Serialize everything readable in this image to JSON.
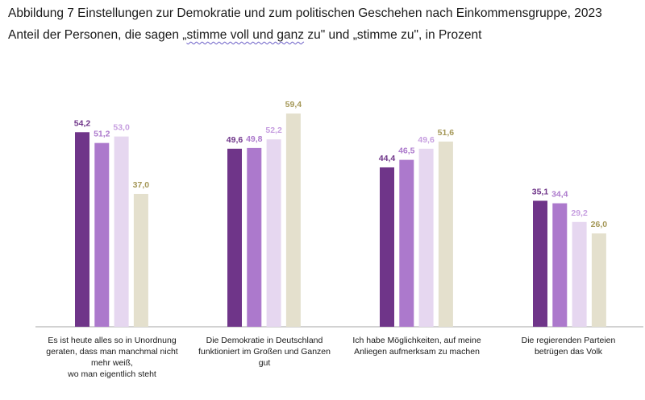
{
  "title": "Abbildung 7 Einstellungen zur Demokratie und zum politischen Geschehen nach Einkommensgruppe, 2023",
  "subtitle_before": "Anteil der Personen, die sagen „",
  "subtitle_mark": "stimme voll und ganz",
  "subtitle_after": " zu\" und „stimme zu\", in Prozent",
  "colors": [
    "#6f3589",
    "#ac79cc",
    "#e6d7f0",
    "#e4e0cd"
  ],
  "label_colors": [
    "#6f3589",
    "#ac79cc",
    "#c79fe0",
    "#a59858"
  ],
  "chart_data": {
    "type": "bar",
    "categories": [
      "Es ist heute alles so in Unordnung geraten, dass man manchmal nicht mehr weiß, wo man eigentlich steht",
      "Die Demokratie in Deutschland funktioniert im Großen und Ganzen gut",
      "Ich habe Möglichkeiten, auf meine Anliegen aufmerksam zu machen",
      "Die regierenden Parteien betrügen das Volk"
    ],
    "category_lines": [
      [
        "Es ist heute alles so in Unordnung",
        "geraten, dass man manchmal nicht",
        "mehr weiß,",
        "wo man eigentlich steht"
      ],
      [
        "Die Demokratie in Deutschland",
        "funktioniert im Großen und Ganzen",
        "gut"
      ],
      [
        "Ich habe Möglichkeiten, auf meine",
        "Anliegen aufmerksam zu machen"
      ],
      [
        "Die regierenden Parteien",
        "betrügen das Volk"
      ]
    ],
    "series": [
      {
        "values": [
          54.2,
          49.6,
          44.4,
          35.1
        ],
        "labels": [
          "54,2",
          "49,6",
          "44,4",
          "35,1"
        ]
      },
      {
        "values": [
          51.2,
          49.8,
          46.5,
          34.4
        ],
        "labels": [
          "51,2",
          "49,8",
          "46,5",
          "34,4"
        ]
      },
      {
        "values": [
          53.0,
          52.2,
          49.6,
          29.2
        ],
        "labels": [
          "53,0",
          "52,2",
          "49,6",
          "29,2"
        ]
      },
      {
        "values": [
          37.0,
          59.4,
          51.6,
          26.0
        ],
        "labels": [
          "37,0",
          "59,4",
          "51,6",
          "26,0"
        ]
      }
    ],
    "ylim": [
      0,
      65
    ],
    "grid": false,
    "legend": "none"
  }
}
